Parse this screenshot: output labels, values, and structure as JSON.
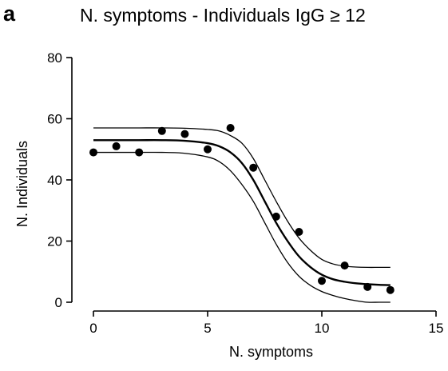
{
  "panel_label": "a",
  "chart_data": {
    "type": "scatter",
    "title": "N. symptoms - Individuals IgG ≥ 12",
    "xlabel": "N. symptoms",
    "ylabel": "N. Individuals",
    "xlim": [
      0,
      15
    ],
    "ylim": [
      0,
      80
    ],
    "xticks": [
      0,
      5,
      10,
      15
    ],
    "yticks": [
      0,
      20,
      40,
      60,
      80
    ],
    "grid": false,
    "points": {
      "x": [
        0,
        1,
        2,
        3,
        4,
        5,
        6,
        7,
        8,
        9,
        10,
        11,
        12,
        13
      ],
      "y": [
        49,
        51,
        49,
        56,
        55,
        50,
        57,
        44,
        28,
        23,
        7,
        12,
        5,
        4
      ]
    },
    "curves": [
      {
        "x": [
          0,
          1,
          2,
          3,
          4,
          5,
          5.5,
          6,
          6.5,
          7,
          7.5,
          8,
          8.5,
          9,
          9.5,
          10,
          10.5,
          11,
          11.5,
          12,
          12.5,
          13
        ],
        "y": [
          57,
          57,
          57,
          57,
          56.9,
          56.5,
          56,
          54.5,
          52,
          47,
          40,
          33,
          26.5,
          21,
          17,
          14,
          12.5,
          11.8,
          11.5,
          11.4,
          11.4,
          11.4
        ]
      },
      {
        "x": [
          0,
          1,
          2,
          3,
          4,
          5,
          5.5,
          6,
          6.5,
          7,
          7.5,
          8,
          8.5,
          9,
          9.5,
          10,
          10.5,
          11,
          11.5,
          12,
          12.5,
          13
        ],
        "y": [
          53,
          53,
          53,
          53,
          52.8,
          52,
          51,
          49,
          45.5,
          40,
          33,
          26,
          20,
          15,
          11.5,
          9,
          7.5,
          6.7,
          6.2,
          5.9,
          5.7,
          5.6
        ]
      },
      {
        "x": [
          0,
          1,
          2,
          3,
          4,
          5,
          5.5,
          6,
          6.5,
          7,
          7.5,
          8,
          8.5,
          9,
          9.5,
          10,
          10.5,
          11,
          11.5,
          12,
          12.5,
          13
        ],
        "y": [
          49,
          49,
          49,
          49,
          48.7,
          47.5,
          46,
          43,
          38.5,
          33,
          26,
          19,
          13,
          8.5,
          5.5,
          3.5,
          2.2,
          1.2,
          0.5,
          0,
          0,
          0
        ]
      }
    ]
  }
}
